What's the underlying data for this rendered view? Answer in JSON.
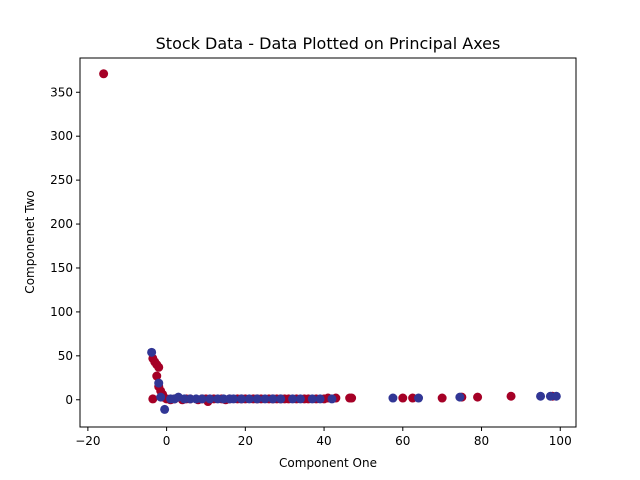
{
  "chart_data": {
    "type": "scatter",
    "title": "Stock Data - Data Plotted on Principal Axes",
    "xlabel": "Component One",
    "ylabel": "Componenet Two",
    "xlim": [
      -22,
      104
    ],
    "ylim": [
      -31,
      389
    ],
    "x_ticks": [
      -20,
      0,
      20,
      40,
      60,
      80,
      100
    ],
    "y_ticks": [
      0,
      50,
      100,
      150,
      200,
      250,
      300,
      350
    ],
    "grid": false,
    "colors": {
      "red": "#a50026",
      "blue": "#313695"
    },
    "series": [
      {
        "color": "red",
        "points": [
          [
            -16,
            371
          ],
          [
            -3.5,
            47
          ],
          [
            -3,
            43
          ],
          [
            -2.5,
            40
          ],
          [
            -2,
            37
          ],
          [
            -2.5,
            27
          ],
          [
            -2,
            15
          ],
          [
            -1.5,
            10
          ],
          [
            -1,
            6
          ],
          [
            -1,
            3
          ],
          [
            0,
            1
          ],
          [
            -3.5,
            1
          ],
          [
            1,
            0
          ],
          [
            2,
            1
          ],
          [
            4,
            0
          ],
          [
            5,
            1
          ],
          [
            6,
            1
          ],
          [
            8,
            0
          ],
          [
            9,
            1
          ],
          [
            10,
            1
          ],
          [
            10.5,
            -2
          ],
          [
            12,
            1
          ],
          [
            14,
            1
          ],
          [
            15,
            0
          ],
          [
            16,
            1
          ],
          [
            18,
            1
          ],
          [
            19,
            1
          ],
          [
            20,
            1
          ],
          [
            22,
            1
          ],
          [
            23,
            1
          ],
          [
            24,
            1
          ],
          [
            26,
            1
          ],
          [
            27,
            1
          ],
          [
            28,
            1
          ],
          [
            29,
            1
          ],
          [
            30,
            1
          ],
          [
            31,
            1
          ],
          [
            33,
            1
          ],
          [
            35,
            1
          ],
          [
            36,
            1
          ],
          [
            38,
            1
          ],
          [
            40,
            1
          ],
          [
            41,
            2
          ],
          [
            43,
            2
          ],
          [
            46.5,
            2
          ],
          [
            47,
            2
          ],
          [
            60,
            2
          ],
          [
            62.5,
            2
          ],
          [
            70,
            2
          ],
          [
            75,
            3
          ],
          [
            79,
            3
          ],
          [
            87.5,
            4
          ],
          [
            98,
            4
          ]
        ]
      },
      {
        "color": "blue",
        "points": [
          [
            -3.8,
            54
          ],
          [
            -2,
            19
          ],
          [
            -0.5,
            -11
          ],
          [
            -1.5,
            3
          ],
          [
            1,
            1
          ],
          [
            2,
            1
          ],
          [
            3,
            3
          ],
          [
            4.5,
            1
          ],
          [
            6,
            1
          ],
          [
            7.5,
            1
          ],
          [
            9,
            1
          ],
          [
            11,
            1
          ],
          [
            13,
            1
          ],
          [
            14.5,
            1
          ],
          [
            16,
            1
          ],
          [
            17,
            1
          ],
          [
            19,
            1
          ],
          [
            21,
            1
          ],
          [
            23,
            1
          ],
          [
            25,
            1
          ],
          [
            27,
            1
          ],
          [
            29,
            1
          ],
          [
            32,
            1
          ],
          [
            34,
            1
          ],
          [
            37,
            1
          ],
          [
            39,
            1
          ],
          [
            42,
            1
          ],
          [
            57.5,
            2
          ],
          [
            64,
            2
          ],
          [
            74.5,
            3
          ],
          [
            95,
            4
          ],
          [
            97.5,
            4
          ],
          [
            99,
            4
          ]
        ]
      }
    ]
  }
}
